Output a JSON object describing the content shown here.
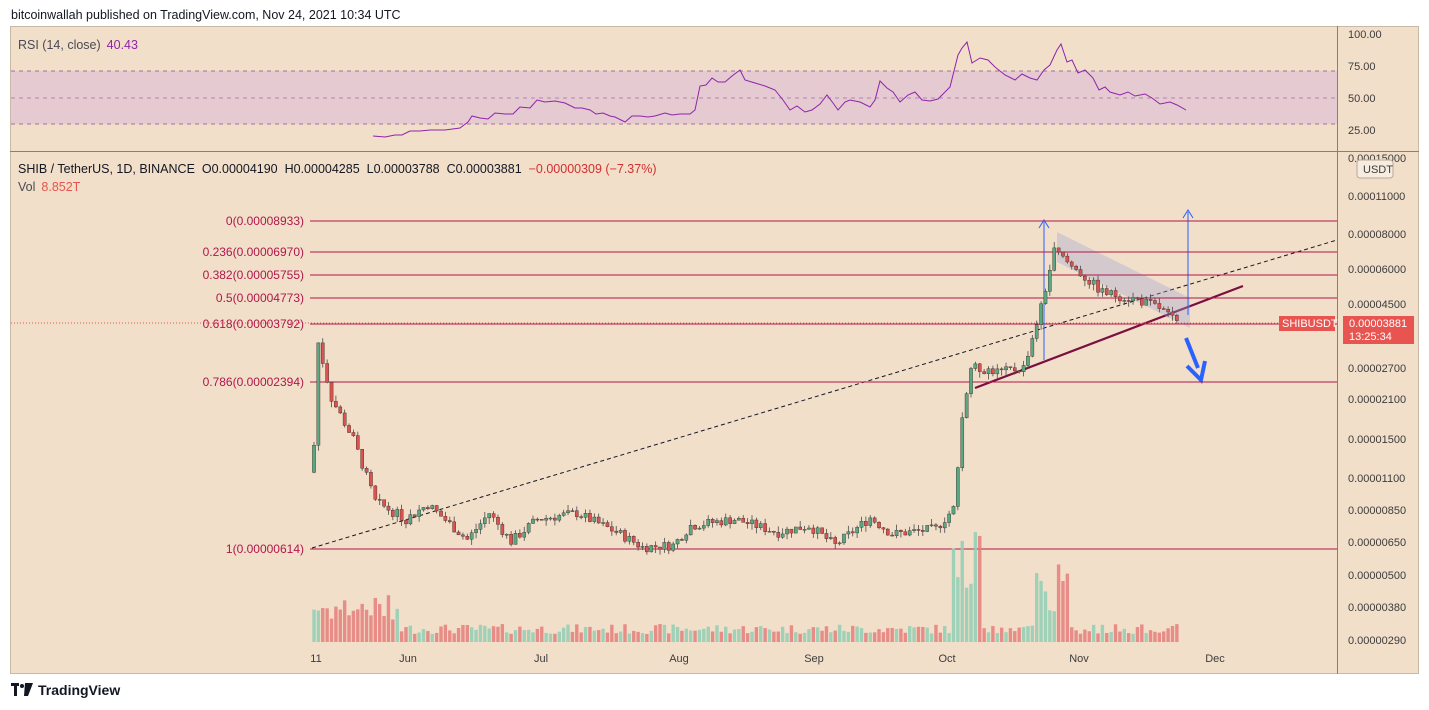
{
  "header": {
    "publisher_line": "bitcoinwallah published on TradingView.com, Nov 24, 2021 10:34 UTC"
  },
  "rsi": {
    "label": "RSI (14, close)",
    "value": "40.43",
    "ticks": [
      "100.00",
      "75.00",
      "50.00",
      "25.00"
    ]
  },
  "legend": {
    "symbol": "SHIB / TetherUS, 1D, BINANCE",
    "open": "O0.00004190",
    "high": "H0.00004285",
    "low": "L0.00003788",
    "close": "C0.00003881",
    "change": "−0.00000309 (−7.37%)",
    "vol_label": "Vol",
    "vol_value": "8.852T"
  },
  "price_axis": {
    "currency": "USDT",
    "ticks": [
      "0.00015000",
      "0.00011000",
      "0.00008000",
      "0.00006000",
      "0.00004500",
      "0.00002700",
      "0.00002100",
      "0.00001500",
      "0.00001100",
      "0.00000850",
      "0.00000650",
      "0.00000500",
      "0.00000380",
      "0.00000290"
    ]
  },
  "price_tag": {
    "symbol": "SHIBUSDT",
    "price": "0.00003881",
    "countdown": "13:25:34"
  },
  "fib_levels": [
    {
      "label": "0(0.00008933)"
    },
    {
      "label": "0.236(0.00006970)"
    },
    {
      "label": "0.382(0.00005755)"
    },
    {
      "label": "0.5(0.00004773)"
    },
    {
      "label": "0.618(0.00003792)"
    },
    {
      "label": "0.786(0.00002394)"
    },
    {
      "label": "1(0.00000614)"
    }
  ],
  "time_axis": [
    "11",
    "Jun",
    "Jul",
    "Aug",
    "Sep",
    "Oct",
    "Nov",
    "Dec"
  ],
  "footer": {
    "brand": "TradingView"
  },
  "colors": {
    "up": "#26a69a",
    "down": "#ef5350",
    "rsi_line": "#8e24aa",
    "fib": "#b0174a",
    "trend": "#7a1040",
    "arrow": "#2962ff",
    "background": "#f2dfca"
  },
  "chart_data": {
    "type": "candlestick",
    "title": "SHIB / TetherUS, 1D, BINANCE",
    "x_range": [
      "May 11",
      "Dec"
    ],
    "y_scale": "log",
    "close_path": [
      {
        "t": "May 11",
        "c": 1.43e-05
      },
      {
        "t": "May 12",
        "c": 3.3e-05
      },
      {
        "t": "May 15",
        "c": 2.1e-05
      },
      {
        "t": "May 20",
        "c": 1.5e-05
      },
      {
        "t": "May 25",
        "c": 9e-06
      },
      {
        "t": "Jun 1",
        "c": 7.8e-06
      },
      {
        "t": "Jun 6",
        "c": 8.8e-06
      },
      {
        "t": "Jun 15",
        "c": 6.6e-06
      },
      {
        "t": "Jun 20",
        "c": 8.2e-06
      },
      {
        "t": "Jun 25",
        "c": 6.5e-06
      },
      {
        "t": "Jul 1",
        "c": 7.8e-06
      },
      {
        "t": "Jul 10",
        "c": 8.2e-06
      },
      {
        "t": "Jul 20",
        "c": 6.9e-06
      },
      {
        "t": "Jul 25",
        "c": 6.2e-06
      },
      {
        "t": "Aug 1",
        "c": 6.3e-06
      },
      {
        "t": "Aug 5",
        "c": 7.4e-06
      },
      {
        "t": "Aug 15",
        "c": 7.8e-06
      },
      {
        "t": "Aug 25",
        "c": 7e-06
      },
      {
        "t": "Sep 1",
        "c": 7.4e-06
      },
      {
        "t": "Sep 7",
        "c": 6.3e-06
      },
      {
        "t": "Sep 15",
        "c": 7.9e-06
      },
      {
        "t": "Sep 20",
        "c": 6.9e-06
      },
      {
        "t": "Sep 30",
        "c": 7.2e-06
      },
      {
        "t": "Oct 4",
        "c": 8.5e-06
      },
      {
        "t": "Oct 6",
        "c": 1.8e-05
      },
      {
        "t": "Oct 8",
        "c": 2.7e-05
      },
      {
        "t": "Oct 15",
        "c": 2.6e-05
      },
      {
        "t": "Oct 20",
        "c": 2.7e-05
      },
      {
        "t": "Oct 24",
        "c": 4.4e-05
      },
      {
        "t": "Oct 27",
        "c": 7e-05
      },
      {
        "t": "Nov 1",
        "c": 6e-05
      },
      {
        "t": "Nov 7",
        "c": 5e-05
      },
      {
        "t": "Nov 15",
        "c": 4.7e-05
      },
      {
        "t": "Nov 20",
        "c": 4.4e-05
      },
      {
        "t": "Nov 24",
        "c": 3.88e-05
      }
    ]
  }
}
